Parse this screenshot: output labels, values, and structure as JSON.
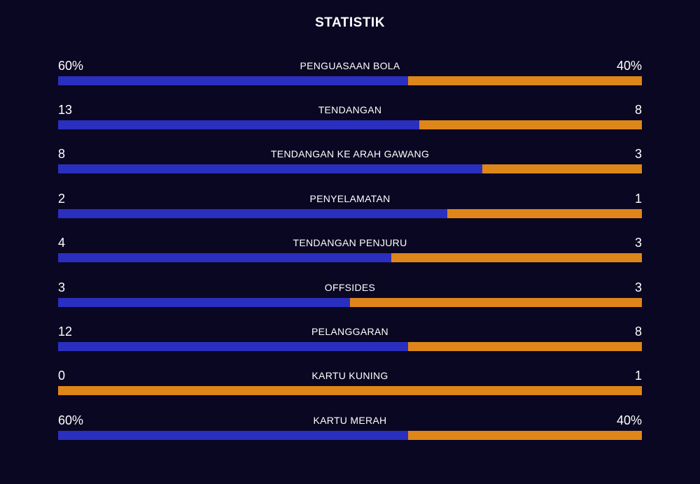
{
  "title": "STATISTIK",
  "colors": {
    "background": "#0a0722",
    "home": "#2a2fbf",
    "away": "#de8619"
  },
  "stats": [
    {
      "label": "PENGUASAAN BOLA",
      "home": "60%",
      "away": "40%",
      "home_share": 0.6
    },
    {
      "label": "TENDANGAN",
      "home": "13",
      "away": "8",
      "home_share": 0.619
    },
    {
      "label": "TENDANGAN KE ARAH GAWANG",
      "home": "8",
      "away": "3",
      "home_share": 0.727
    },
    {
      "label": "PENYELAMATAN",
      "home": "2",
      "away": "1",
      "home_share": 0.667
    },
    {
      "label": "TENDANGAN PENJURU",
      "home": "4",
      "away": "3",
      "home_share": 0.571
    },
    {
      "label": "OFFSIDES",
      "home": "3",
      "away": "3",
      "home_share": 0.5
    },
    {
      "label": "PELANGGARAN",
      "home": "12",
      "away": "8",
      "home_share": 0.6
    },
    {
      "label": "KARTU KUNING",
      "home": "0",
      "away": "1",
      "home_share": 0.0
    },
    {
      "label": "KARTU MERAH",
      "home": "60%",
      "away": "40%",
      "home_share": 0.6
    }
  ]
}
